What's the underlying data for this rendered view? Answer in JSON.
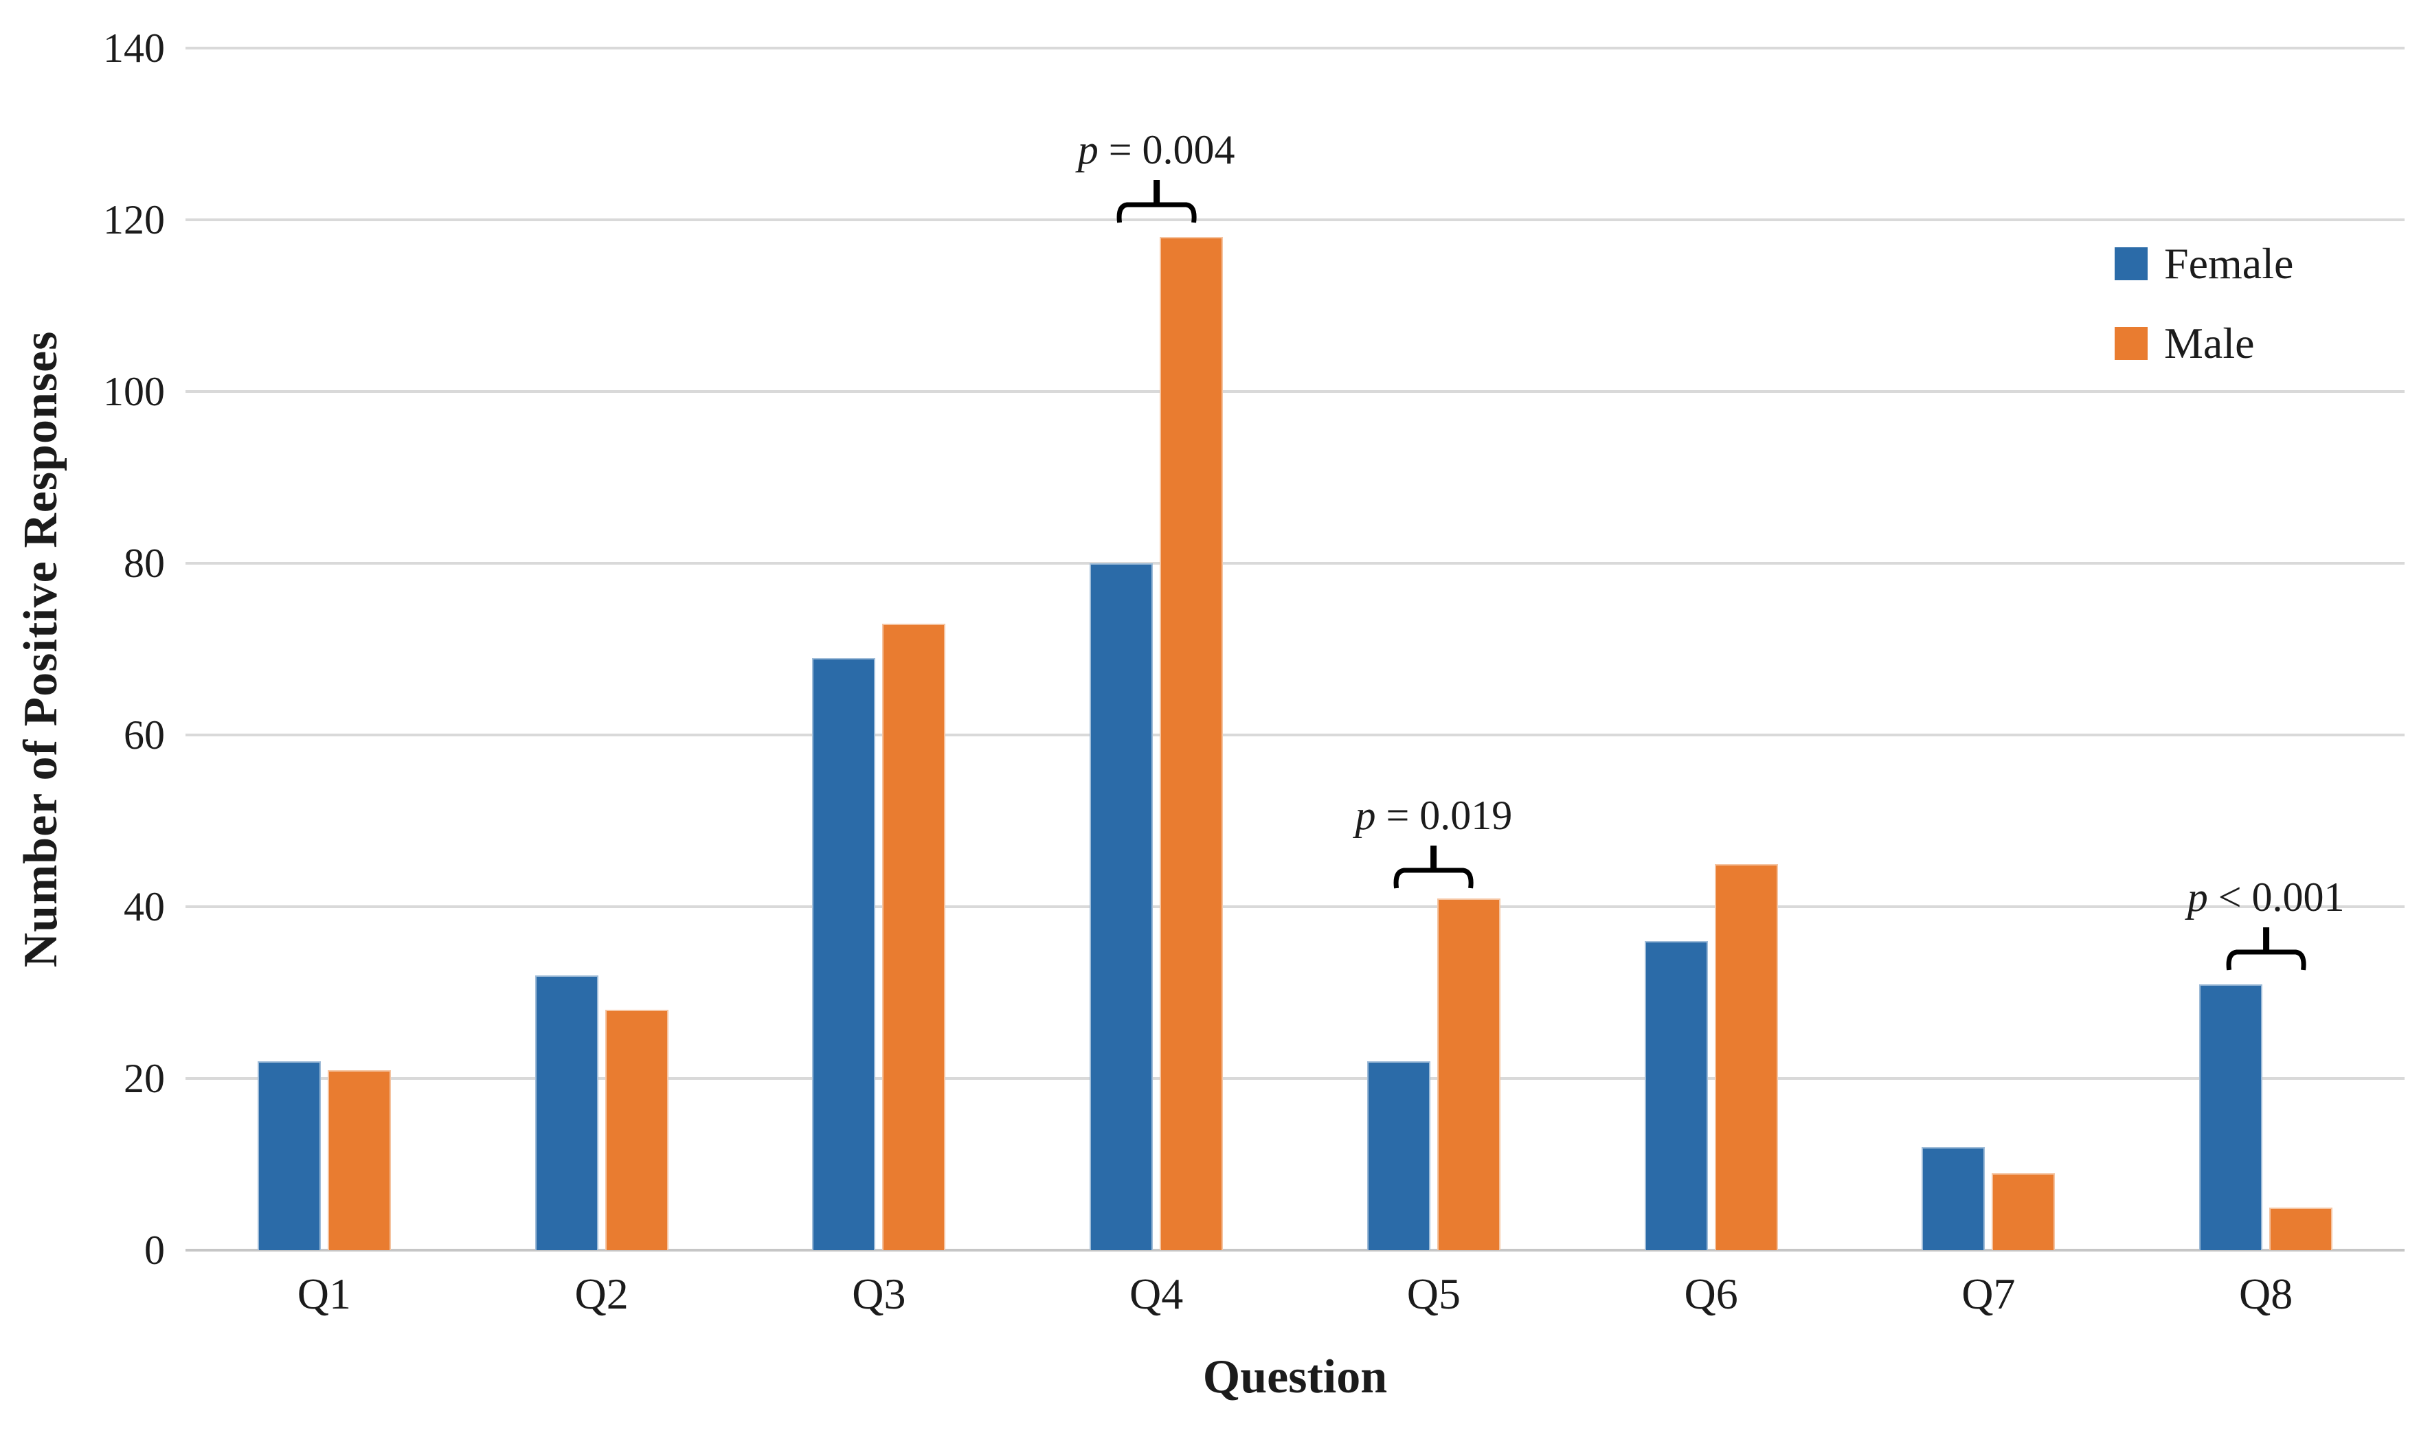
{
  "chart_data": {
    "type": "bar",
    "title": "",
    "xlabel": "Question",
    "ylabel": "Number of Positive Responses",
    "categories": [
      "Q1",
      "Q2",
      "Q3",
      "Q4",
      "Q5",
      "Q6",
      "Q7",
      "Q8"
    ],
    "series": [
      {
        "name": "Female",
        "color": "#2B6BA8",
        "values": [
          22,
          32,
          69,
          80,
          22,
          36,
          12,
          31
        ]
      },
      {
        "name": "Male",
        "color": "#E97C30",
        "values": [
          21,
          28,
          73,
          118,
          41,
          45,
          9,
          5
        ]
      }
    ],
    "ylim": [
      0,
      140
    ],
    "yticks": [
      0,
      20,
      40,
      60,
      80,
      100,
      120,
      140
    ],
    "grid": "horizontal",
    "gridline_color": "#d9d9d9",
    "legend_position": "top-right",
    "annotations": [
      {
        "category": "Q4",
        "label": "p = 0.004",
        "bracket_bottom_value": 119.5
      },
      {
        "category": "Q5",
        "label": "p = 0.019",
        "bracket_bottom_value": 42
      },
      {
        "category": "Q8",
        "label": "p < 0.001",
        "bracket_bottom_value": 32.5
      }
    ]
  }
}
